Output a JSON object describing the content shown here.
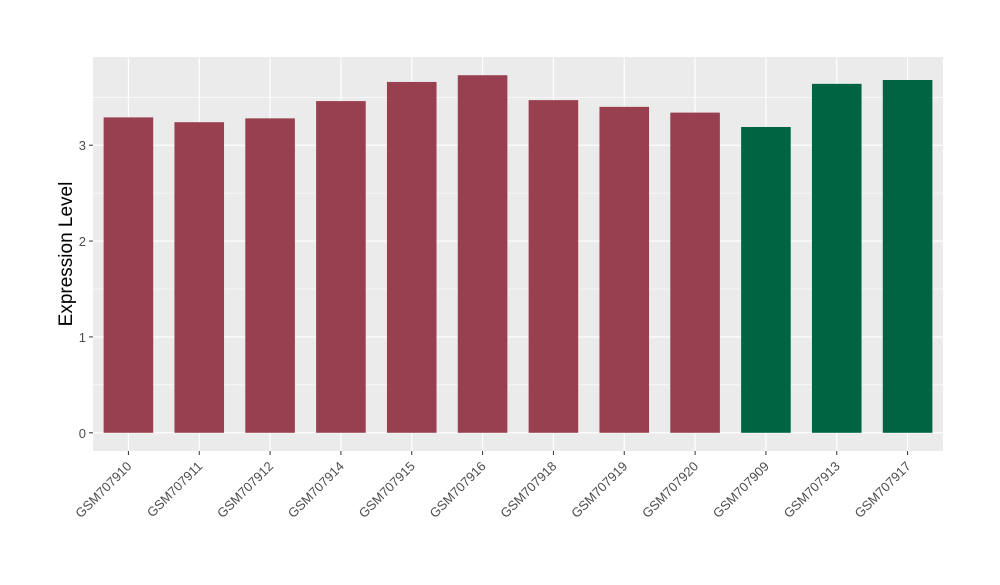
{
  "chart_data": {
    "type": "bar",
    "title": "",
    "xlabel": "",
    "ylabel": "Expression Level",
    "ylim": [
      -0.19,
      3.92
    ],
    "yticks": [
      0,
      1,
      2,
      3
    ],
    "grid": true,
    "categories": [
      "GSM707910",
      "GSM707911",
      "GSM707912",
      "GSM707914",
      "GSM707915",
      "GSM707916",
      "GSM707918",
      "GSM707919",
      "GSM707920",
      "GSM707909",
      "GSM707913",
      "GSM707917"
    ],
    "values": [
      3.29,
      3.24,
      3.28,
      3.46,
      3.66,
      3.73,
      3.47,
      3.4,
      3.34,
      3.19,
      3.64,
      3.68
    ],
    "groups": [
      "a",
      "a",
      "a",
      "a",
      "a",
      "a",
      "a",
      "a",
      "a",
      "b",
      "b",
      "b"
    ],
    "colors": {
      "a": "#98404F",
      "b": "#006342"
    }
  }
}
